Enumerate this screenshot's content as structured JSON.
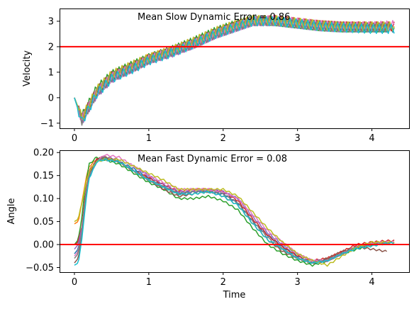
{
  "chart_data": [
    {
      "type": "line",
      "title": "",
      "annotation": "Mean Slow Dynamic Error = 0.86",
      "xlabel": "",
      "ylabel": "Velocity",
      "xlim": [
        -0.2,
        4.5
      ],
      "ylim": [
        -1.2,
        3.5
      ],
      "x_ticks": [
        0,
        1,
        2,
        3,
        4
      ],
      "y_ticks": [
        -1,
        0,
        1,
        2,
        3
      ],
      "reference_line": {
        "y": 2.0,
        "color": "#ff0000"
      },
      "grid": false,
      "legend": "none",
      "noise_amplitude": 0.18,
      "series": [
        {
          "color": "#1f77b4",
          "end": 4.3,
          "x": [
            0,
            0.1,
            0.3,
            0.5,
            0.8,
            1.0,
            1.3,
            1.6,
            1.9,
            2.2,
            2.4,
            2.7,
            3.0,
            3.3,
            3.6,
            4.0,
            4.3
          ],
          "y": [
            0,
            -0.9,
            0.2,
            0.8,
            1.2,
            1.5,
            1.8,
            2.1,
            2.5,
            2.8,
            3.0,
            3.0,
            2.9,
            2.8,
            2.75,
            2.75,
            2.75
          ]
        },
        {
          "color": "#ff7f0e",
          "end": 4.25,
          "x": [
            0,
            0.1,
            0.3,
            0.5,
            0.8,
            1.0,
            1.3,
            1.6,
            1.9,
            2.2,
            2.4,
            2.7,
            3.0,
            3.3,
            3.6,
            4.0,
            4.3
          ],
          "y": [
            0,
            -0.8,
            0.25,
            0.85,
            1.25,
            1.55,
            1.8,
            2.15,
            2.55,
            2.85,
            3.0,
            3.0,
            2.9,
            2.8,
            2.8,
            2.75,
            2.75
          ]
        },
        {
          "color": "#2ca02c",
          "end": 4.2,
          "x": [
            0,
            0.1,
            0.3,
            0.5,
            0.8,
            1.0,
            1.3,
            1.6,
            1.9,
            2.2,
            2.4,
            2.7,
            3.0,
            3.3,
            3.6,
            4.0,
            4.3
          ],
          "y": [
            0,
            -0.75,
            0.35,
            0.9,
            1.3,
            1.55,
            1.85,
            2.2,
            2.6,
            2.9,
            3.05,
            3.0,
            2.9,
            2.8,
            2.75,
            2.75,
            2.75
          ]
        },
        {
          "color": "#d62728",
          "end": 4.3,
          "x": [
            0,
            0.1,
            0.3,
            0.5,
            0.8,
            1.0,
            1.3,
            1.6,
            1.9,
            2.2,
            2.4,
            2.7,
            3.0,
            3.3,
            3.6,
            4.0,
            4.3
          ],
          "y": [
            0,
            -0.85,
            0.2,
            0.8,
            1.2,
            1.5,
            1.8,
            2.1,
            2.5,
            2.85,
            3.0,
            3.05,
            2.95,
            2.85,
            2.8,
            2.8,
            2.8
          ]
        },
        {
          "color": "#9467bd",
          "end": 4.25,
          "x": [
            0,
            0.1,
            0.3,
            0.5,
            0.8,
            1.0,
            1.3,
            1.6,
            1.9,
            2.2,
            2.4,
            2.7,
            3.0,
            3.3,
            3.6,
            4.0,
            4.3
          ],
          "y": [
            0,
            -0.9,
            0.15,
            0.75,
            1.2,
            1.5,
            1.75,
            2.1,
            2.5,
            2.8,
            3.0,
            3.0,
            2.9,
            2.8,
            2.75,
            2.8,
            2.8
          ]
        },
        {
          "color": "#8c564b",
          "end": 4.2,
          "x": [
            0,
            0.1,
            0.3,
            0.5,
            0.8,
            1.0,
            1.3,
            1.6,
            1.9,
            2.2,
            2.4,
            2.7,
            3.0,
            3.3,
            3.6,
            4.0,
            4.3
          ],
          "y": [
            0,
            -0.8,
            0.25,
            0.85,
            1.25,
            1.5,
            1.8,
            2.15,
            2.55,
            2.85,
            3.0,
            3.0,
            2.9,
            2.85,
            2.8,
            2.75,
            2.75
          ]
        },
        {
          "color": "#e377c2",
          "end": 4.3,
          "x": [
            0,
            0.1,
            0.3,
            0.5,
            0.8,
            1.0,
            1.3,
            1.6,
            1.9,
            2.2,
            2.4,
            2.7,
            3.0,
            3.3,
            3.6,
            4.0,
            4.3
          ],
          "y": [
            0,
            -0.85,
            0.2,
            0.8,
            1.2,
            1.5,
            1.8,
            2.1,
            2.5,
            2.8,
            3.0,
            3.05,
            2.95,
            2.85,
            2.8,
            2.8,
            2.85
          ]
        },
        {
          "color": "#7f7f7f",
          "end": 4.25,
          "x": [
            0,
            0.1,
            0.3,
            0.5,
            0.8,
            1.0,
            1.3,
            1.6,
            1.9,
            2.2,
            2.4,
            2.7,
            3.0,
            3.3,
            3.6,
            4.0,
            4.3
          ],
          "y": [
            0,
            -0.9,
            0.2,
            0.8,
            1.2,
            1.5,
            1.8,
            2.1,
            2.5,
            2.8,
            3.0,
            3.0,
            2.9,
            2.8,
            2.75,
            2.75,
            2.75
          ]
        },
        {
          "color": "#bcbd22",
          "end": 4.3,
          "x": [
            0,
            0.1,
            0.3,
            0.5,
            0.8,
            1.0,
            1.3,
            1.6,
            1.9,
            2.2,
            2.4,
            2.7,
            3.0,
            3.3,
            3.6,
            4.0,
            4.3
          ],
          "y": [
            0,
            -0.8,
            0.3,
            0.9,
            1.3,
            1.55,
            1.85,
            2.2,
            2.6,
            2.9,
            3.05,
            3.05,
            2.95,
            2.85,
            2.8,
            2.8,
            2.8
          ]
        },
        {
          "color": "#17becf",
          "end": 4.3,
          "x": [
            0,
            0.1,
            0.3,
            0.5,
            0.8,
            1.0,
            1.3,
            1.6,
            1.9,
            2.2,
            2.4,
            2.7,
            3.0,
            3.3,
            3.6,
            4.0,
            4.3
          ],
          "y": [
            0,
            -0.95,
            0.15,
            0.75,
            1.15,
            1.45,
            1.75,
            2.1,
            2.5,
            2.8,
            3.0,
            3.0,
            2.9,
            2.8,
            2.75,
            2.7,
            2.7
          ]
        }
      ]
    },
    {
      "type": "line",
      "title": "",
      "annotation": "Mean Fast Dynamic Error = 0.08",
      "xlabel": "Time",
      "ylabel": "Angle",
      "xlim": [
        -0.2,
        4.5
      ],
      "ylim": [
        -0.06,
        0.205
      ],
      "x_ticks": [
        0,
        1,
        2,
        3,
        4
      ],
      "y_ticks": [
        -0.05,
        0.0,
        0.05,
        0.1,
        0.15,
        0.2
      ],
      "y_tick_labels": [
        "−0.05",
        "0.00",
        "0.05",
        "0.10",
        "0.15",
        "0.20"
      ],
      "reference_line": {
        "y": 0.0,
        "color": "#ff0000"
      },
      "grid": false,
      "legend": "none",
      "noise_amplitude": 0.002,
      "series": [
        {
          "color": "#1f77b4",
          "end": 4.3,
          "x": [
            0,
            0.05,
            0.1,
            0.15,
            0.2,
            0.3,
            0.4,
            0.6,
            0.8,
            1.0,
            1.2,
            1.4,
            1.6,
            1.8,
            2.0,
            2.2,
            2.4,
            2.6,
            2.8,
            3.0,
            3.2,
            3.4,
            3.6,
            3.8,
            4.0,
            4.2
          ],
          "y": [
            -0.02,
            -0.01,
            0.03,
            0.1,
            0.15,
            0.18,
            0.185,
            0.18,
            0.165,
            0.145,
            0.125,
            0.11,
            0.115,
            0.115,
            0.11,
            0.09,
            0.05,
            0.02,
            -0.005,
            -0.025,
            -0.04,
            -0.035,
            -0.02,
            -0.005,
            0.0,
            0.005
          ]
        },
        {
          "color": "#ff7f0e",
          "end": 4.25,
          "x": [
            0,
            0.05,
            0.1,
            0.15,
            0.2,
            0.3,
            0.4,
            0.6,
            0.8,
            1.0,
            1.2,
            1.4,
            1.6,
            1.8,
            2.0,
            2.2,
            2.4,
            2.6,
            2.8,
            3.0,
            3.2,
            3.4,
            3.6,
            3.8,
            4.0,
            4.2
          ],
          "y": [
            0.045,
            0.05,
            0.09,
            0.14,
            0.17,
            0.185,
            0.19,
            0.18,
            0.16,
            0.14,
            0.125,
            0.11,
            0.11,
            0.115,
            0.105,
            0.085,
            0.045,
            0.01,
            -0.01,
            -0.03,
            -0.04,
            -0.035,
            -0.02,
            -0.005,
            0.0,
            0.005
          ]
        },
        {
          "color": "#2ca02c",
          "end": 4.2,
          "x": [
            0,
            0.05,
            0.1,
            0.15,
            0.2,
            0.3,
            0.4,
            0.6,
            0.8,
            1.0,
            1.2,
            1.4,
            1.6,
            1.8,
            2.0,
            2.2,
            2.4,
            2.6,
            2.8,
            3.0,
            3.2,
            3.4,
            3.6,
            3.8,
            4.0,
            4.2
          ],
          "y": [
            0.0,
            0.01,
            0.06,
            0.13,
            0.175,
            0.19,
            0.185,
            0.175,
            0.155,
            0.135,
            0.12,
            0.1,
            0.1,
            0.105,
            0.095,
            0.075,
            0.035,
            0.0,
            -0.02,
            -0.035,
            -0.045,
            -0.035,
            -0.02,
            -0.01,
            0.0,
            0.005
          ]
        },
        {
          "color": "#d62728",
          "end": 4.3,
          "x": [
            0,
            0.05,
            0.1,
            0.15,
            0.2,
            0.3,
            0.4,
            0.6,
            0.8,
            1.0,
            1.2,
            1.4,
            1.6,
            1.8,
            2.0,
            2.2,
            2.4,
            2.6,
            2.8,
            3.0,
            3.2,
            3.4,
            3.6,
            3.8,
            4.0,
            4.2
          ],
          "y": [
            0.0,
            0.005,
            0.04,
            0.11,
            0.16,
            0.185,
            0.19,
            0.18,
            0.16,
            0.145,
            0.13,
            0.115,
            0.12,
            0.12,
            0.115,
            0.095,
            0.055,
            0.02,
            -0.005,
            -0.025,
            -0.035,
            -0.03,
            -0.015,
            0.0,
            0.005,
            0.008
          ]
        },
        {
          "color": "#9467bd",
          "end": 4.25,
          "x": [
            0,
            0.05,
            0.1,
            0.15,
            0.2,
            0.3,
            0.4,
            0.6,
            0.8,
            1.0,
            1.2,
            1.4,
            1.6,
            1.8,
            2.0,
            2.2,
            2.4,
            2.6,
            2.8,
            3.0,
            3.2,
            3.4,
            3.6,
            3.8,
            4.0,
            4.2
          ],
          "y": [
            -0.01,
            0.0,
            0.035,
            0.105,
            0.155,
            0.18,
            0.19,
            0.185,
            0.17,
            0.15,
            0.13,
            0.115,
            0.115,
            0.12,
            0.115,
            0.1,
            0.06,
            0.025,
            0.0,
            -0.02,
            -0.035,
            -0.035,
            -0.02,
            -0.005,
            0.0,
            0.005
          ]
        },
        {
          "color": "#8c564b",
          "end": 4.2,
          "x": [
            0,
            0.05,
            0.1,
            0.15,
            0.2,
            0.3,
            0.4,
            0.6,
            0.8,
            1.0,
            1.2,
            1.4,
            1.6,
            1.8,
            2.0,
            2.2,
            2.4,
            2.6,
            2.8,
            3.0,
            3.2,
            3.4,
            3.6,
            3.8,
            4.0,
            4.2
          ],
          "y": [
            -0.04,
            -0.03,
            0.02,
            0.1,
            0.155,
            0.185,
            0.19,
            0.18,
            0.16,
            0.14,
            0.12,
            0.105,
            0.11,
            0.115,
            0.105,
            0.085,
            0.045,
            0.01,
            -0.015,
            -0.03,
            -0.04,
            -0.03,
            -0.015,
            -0.005,
            -0.01,
            -0.015
          ]
        },
        {
          "color": "#e377c2",
          "end": 4.3,
          "x": [
            0,
            0.05,
            0.1,
            0.15,
            0.2,
            0.3,
            0.4,
            0.6,
            0.8,
            1.0,
            1.2,
            1.4,
            1.6,
            1.8,
            2.0,
            2.2,
            2.4,
            2.6,
            2.8,
            3.0,
            3.2,
            3.4,
            3.6,
            3.8,
            4.0,
            4.2
          ],
          "y": [
            -0.025,
            -0.015,
            0.03,
            0.1,
            0.15,
            0.18,
            0.195,
            0.19,
            0.17,
            0.15,
            0.135,
            0.12,
            0.12,
            0.12,
            0.115,
            0.1,
            0.065,
            0.03,
            0.005,
            -0.02,
            -0.035,
            -0.035,
            -0.02,
            -0.005,
            0.003,
            0.005
          ]
        },
        {
          "color": "#7f7f7f",
          "end": 4.25,
          "x": [
            0,
            0.05,
            0.1,
            0.15,
            0.2,
            0.3,
            0.4,
            0.6,
            0.8,
            1.0,
            1.2,
            1.4,
            1.6,
            1.8,
            2.0,
            2.2,
            2.4,
            2.6,
            2.8,
            3.0,
            3.2,
            3.4,
            3.6,
            3.8,
            4.0,
            4.2
          ],
          "y": [
            -0.03,
            -0.02,
            0.03,
            0.1,
            0.15,
            0.18,
            0.19,
            0.18,
            0.16,
            0.14,
            0.125,
            0.11,
            0.115,
            0.115,
            0.11,
            0.09,
            0.05,
            0.015,
            -0.01,
            -0.03,
            -0.04,
            -0.035,
            -0.02,
            -0.005,
            0.0,
            0.003
          ]
        },
        {
          "color": "#bcbd22",
          "end": 4.3,
          "x": [
            0,
            0.05,
            0.1,
            0.15,
            0.2,
            0.3,
            0.4,
            0.6,
            0.8,
            1.0,
            1.2,
            1.4,
            1.6,
            1.8,
            2.0,
            2.2,
            2.4,
            2.6,
            2.8,
            3.0,
            3.2,
            3.4,
            3.6,
            3.8,
            4.0,
            4.2
          ],
          "y": [
            0.05,
            0.055,
            0.09,
            0.13,
            0.16,
            0.18,
            0.185,
            0.185,
            0.17,
            0.155,
            0.14,
            0.12,
            0.12,
            0.12,
            0.12,
            0.105,
            0.07,
            0.035,
            0.005,
            -0.02,
            -0.035,
            -0.045,
            -0.025,
            -0.005,
            0.005,
            0.005
          ]
        },
        {
          "color": "#17becf",
          "end": 4.3,
          "x": [
            0,
            0.05,
            0.1,
            0.15,
            0.2,
            0.3,
            0.4,
            0.6,
            0.8,
            1.0,
            1.2,
            1.4,
            1.6,
            1.8,
            2.0,
            2.2,
            2.4,
            2.6,
            2.8,
            3.0,
            3.2,
            3.4,
            3.6,
            3.8,
            4.0,
            4.2
          ],
          "y": [
            -0.045,
            -0.04,
            0.01,
            0.09,
            0.145,
            0.18,
            0.185,
            0.18,
            0.16,
            0.14,
            0.125,
            0.11,
            0.11,
            0.115,
            0.105,
            0.085,
            0.045,
            0.01,
            -0.01,
            -0.03,
            -0.04,
            -0.035,
            -0.02,
            -0.008,
            -0.003,
            0.003
          ]
        }
      ]
    }
  ]
}
